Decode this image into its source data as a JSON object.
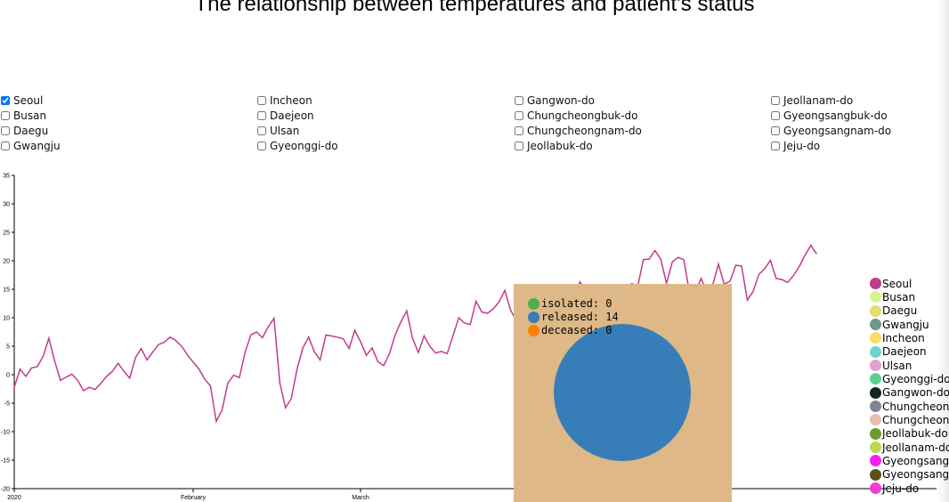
{
  "title": "The relationship between temperatures and patient's status",
  "regions": [
    {
      "label": "Seoul",
      "checked": true
    },
    {
      "label": "Busan",
      "checked": false
    },
    {
      "label": "Daegu",
      "checked": false
    },
    {
      "label": "Gwangju",
      "checked": false
    },
    {
      "label": "Incheon",
      "checked": false
    },
    {
      "label": "Daejeon",
      "checked": false
    },
    {
      "label": "Ulsan",
      "checked": false
    },
    {
      "label": "Gyeonggi-do",
      "checked": false
    },
    {
      "label": "Gangwon-do",
      "checked": false
    },
    {
      "label": "Chungcheongbuk-do",
      "checked": false
    },
    {
      "label": "Chungcheongnam-do",
      "checked": false
    },
    {
      "label": "Jeollabuk-do",
      "checked": false
    },
    {
      "label": "Jeollanam-do",
      "checked": false
    },
    {
      "label": "Gyeongsangbuk-do",
      "checked": false
    },
    {
      "label": "Gyeongsangnam-do",
      "checked": false
    },
    {
      "label": "Jeju-do",
      "checked": false
    }
  ],
  "tooltip": {
    "isolated_label": "isolated: 0",
    "released_label": "released: 14",
    "deceased_label": "deceased: 0",
    "values": {
      "isolated": 0,
      "released": 14,
      "deceased": 0
    },
    "colors": {
      "isolated": "#4daf4a",
      "released": "#377eb8",
      "deceased": "#ff7f00",
      "background": "#deb887"
    }
  },
  "legend": {
    "items": [
      {
        "label": "Seoul",
        "color": "#c23b8f"
      },
      {
        "label": "Busan",
        "color": "#d6f58f"
      },
      {
        "label": "Daegu",
        "color": "#e3e06b"
      },
      {
        "label": "Gwangju",
        "color": "#6b9a8c"
      },
      {
        "label": "Incheon",
        "color": "#f7de62"
      },
      {
        "label": "Daejeon",
        "color": "#6fd3cc"
      },
      {
        "label": "Ulsan",
        "color": "#dfa3cf"
      },
      {
        "label": "Gyeonggi-do",
        "color": "#5fcf90"
      },
      {
        "label": "Gangwon-do",
        "color": "#13271b"
      },
      {
        "label": "Chungcheongbuk-do",
        "color": "#7f8591"
      },
      {
        "label": "Chungcheongnam-do",
        "color": "#e8bcae"
      },
      {
        "label": "Jeollabuk-do",
        "color": "#6a9b2c"
      },
      {
        "label": "Jeollanam-do",
        "color": "#b9d84f"
      },
      {
        "label": "Gyeongsangbuk-do",
        "color": "#f61ff3"
      },
      {
        "label": "Gyeongsangnam-do",
        "color": "#5e5018"
      },
      {
        "label": "Jeju-do",
        "color": "#f33fce"
      }
    ]
  },
  "chart_data": {
    "type": "line",
    "title": "The relationship between temperatures and patient's status",
    "xlabel": "",
    "ylabel": "",
    "x_start": "2020-01-01",
    "x_tick_labels": [
      "2020",
      "February",
      "March"
    ],
    "ylim": [
      -20,
      35
    ],
    "y_ticks": [
      -20,
      -15,
      -10,
      -5,
      0,
      5,
      10,
      15,
      20,
      25,
      30,
      35
    ],
    "grid": false,
    "series": [
      {
        "name": "Seoul",
        "color": "#c23b8f",
        "values": [
          -2.2,
          1.0,
          -0.3,
          1.2,
          1.4,
          3.2,
          6.4,
          2.4,
          -1.0,
          -0.4,
          0.1,
          -1.0,
          -2.8,
          -2.2,
          -2.6,
          -1.5,
          -0.3,
          0.6,
          2.0,
          0.6,
          -0.6,
          3.0,
          4.6,
          2.6,
          4.0,
          5.3,
          5.7,
          6.6,
          6.0,
          5.0,
          3.5,
          2.2,
          1.0,
          -0.8,
          -2.0,
          -8.2,
          -6.2,
          -1.5,
          -0.1,
          -0.5,
          4.0,
          7.0,
          7.5,
          6.5,
          8.4,
          9.9,
          -1.4,
          -5.8,
          -4.2,
          1.0,
          4.7,
          6.6,
          4.0,
          2.6,
          7.0,
          6.8,
          6.6,
          6.3,
          4.6,
          7.8,
          5.8,
          3.4,
          4.7,
          2.3,
          1.6,
          3.7,
          7.0,
          9.3,
          11.2,
          6.4,
          3.9,
          6.8,
          5.0,
          3.8,
          4.1,
          3.7,
          6.8,
          10.0,
          9.1,
          8.8,
          12.9,
          11.0,
          10.8,
          11.6,
          12.8,
          14.8,
          11.3,
          9.5,
          12.6,
          13.4,
          11.8,
          11.5,
          13.6,
          14.2,
          13.0,
          12.3,
          15.0,
          13.0,
          16.3,
          14.8,
          13.8,
          12.4,
          13.0,
          13.5,
          12.8,
          13.7,
          15.1,
          16.0,
          15.5,
          20.2,
          20.3,
          21.8,
          20.3,
          16.0,
          19.8,
          20.6,
          20.2,
          14.3,
          14.5,
          16.9,
          14.4,
          15.7,
          19.4,
          15.9,
          16.4,
          19.2,
          19.1,
          13.1,
          14.6,
          17.6,
          18.6,
          20.1,
          16.9,
          16.7,
          16.2,
          17.4,
          19.0,
          21.0,
          22.7,
          21.2
        ]
      }
    ]
  }
}
